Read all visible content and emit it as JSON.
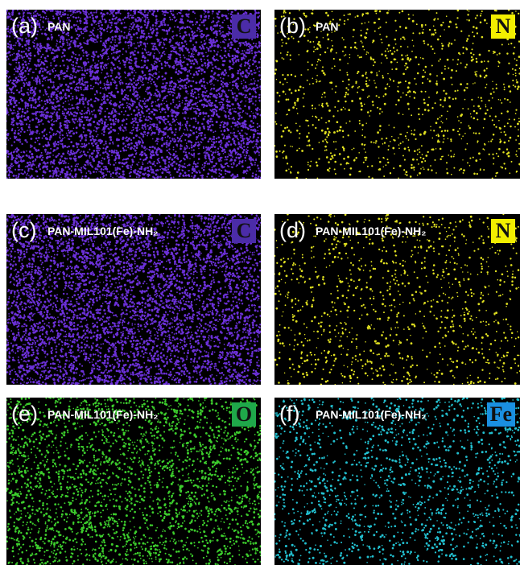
{
  "panels": [
    {
      "letter": "(a)",
      "sample": "PAN",
      "element": "C"
    },
    {
      "letter": "(b)",
      "sample": "PAN",
      "element": "N"
    },
    {
      "letter": "(c)",
      "sample": "PAN-MIL101(Fe)-NH₂",
      "element": "C"
    },
    {
      "letter": "(d)",
      "sample": "PAN-MIL101(Fe)-NH₂",
      "element": "N"
    },
    {
      "letter": "(e)",
      "sample": "PAN-MIL101(Fe)-NH₂",
      "element": "O"
    },
    {
      "letter": "(f)",
      "sample": "PAN-MIL101(Fe)-NH₂",
      "element": "Fe"
    }
  ]
}
